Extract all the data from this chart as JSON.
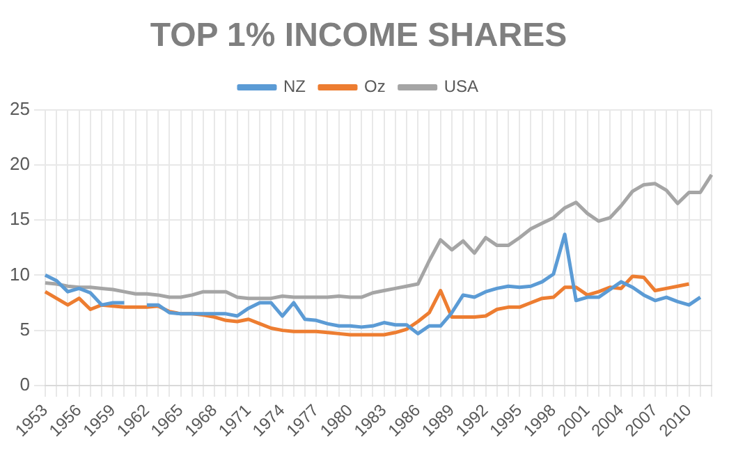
{
  "chart_data": {
    "type": "line",
    "title": "TOP 1% INCOME SHARES",
    "categories": [
      "1953",
      null,
      null,
      "1956",
      null,
      null,
      "1959",
      null,
      null,
      "1962",
      null,
      null,
      "1965",
      null,
      null,
      "1968",
      null,
      null,
      "1971",
      null,
      null,
      "1974",
      null,
      null,
      "1977",
      null,
      null,
      "1980",
      null,
      null,
      "1983",
      null,
      null,
      "1986",
      null,
      null,
      "1989",
      null,
      null,
      "1992",
      null,
      null,
      "1995",
      null,
      null,
      "1998",
      null,
      null,
      "2001",
      null,
      null,
      "2004",
      null,
      null,
      "2007",
      null,
      null,
      "2010",
      null,
      null
    ],
    "series": [
      {
        "name": "NZ",
        "color": "#5b9bd5",
        "values": [
          10.0,
          9.5,
          8.5,
          8.8,
          8.4,
          7.3,
          7.5,
          7.5,
          null,
          7.3,
          7.3,
          6.6,
          6.5,
          6.5,
          6.5,
          6.5,
          6.5,
          6.3,
          7.0,
          7.5,
          7.5,
          6.3,
          7.5,
          6.0,
          5.9,
          5.6,
          5.4,
          5.4,
          5.3,
          5.4,
          5.7,
          5.5,
          5.5,
          4.7,
          5.4,
          5.4,
          6.6,
          8.2,
          8.0,
          8.5,
          8.8,
          9.0,
          8.9,
          9.0,
          9.4,
          10.1,
          13.7,
          7.7,
          8.0,
          8.0,
          8.7,
          9.4,
          8.9,
          8.2,
          7.7,
          8.0,
          7.6,
          7.3,
          8.0,
          null
        ]
      },
      {
        "name": "Oz",
        "color": "#ed7d31",
        "values": [
          8.5,
          7.9,
          7.3,
          7.9,
          6.9,
          7.3,
          7.2,
          7.1,
          7.1,
          7.1,
          7.2,
          6.7,
          6.5,
          6.5,
          6.4,
          6.2,
          5.9,
          5.8,
          6.0,
          5.6,
          5.2,
          5.0,
          4.9,
          4.9,
          4.9,
          4.8,
          4.7,
          4.6,
          4.6,
          4.6,
          4.6,
          4.8,
          5.1,
          5.8,
          6.6,
          8.6,
          6.2,
          6.2,
          6.2,
          6.3,
          6.9,
          7.1,
          7.1,
          7.5,
          7.9,
          8.0,
          8.9,
          8.9,
          8.2,
          8.5,
          8.9,
          8.8,
          9.9,
          9.8,
          8.6,
          8.8,
          9.0,
          9.2,
          null,
          null
        ]
      },
      {
        "name": "USA",
        "color": "#a5a5a5",
        "values": [
          9.3,
          9.2,
          9.0,
          8.9,
          8.9,
          8.8,
          8.7,
          8.5,
          8.3,
          8.3,
          8.2,
          8.0,
          8.0,
          8.2,
          8.5,
          8.5,
          8.5,
          8.0,
          7.9,
          7.9,
          7.9,
          8.1,
          8.0,
          8.0,
          8.0,
          8.0,
          8.1,
          8.0,
          8.0,
          8.4,
          8.6,
          8.8,
          9.0,
          9.2,
          11.3,
          13.2,
          12.3,
          13.1,
          12.0,
          13.4,
          12.7,
          12.7,
          13.4,
          14.2,
          14.7,
          15.2,
          16.1,
          16.6,
          15.6,
          14.9,
          15.2,
          16.3,
          17.6,
          18.2,
          18.3,
          17.7,
          16.5,
          17.5,
          17.5,
          19.1
        ]
      }
    ],
    "ylim": [
      0,
      25
    ],
    "yticks": [
      0,
      5,
      10,
      15,
      20,
      25
    ],
    "grid": true,
    "legend": "top",
    "marker": "none",
    "line_style": "solid"
  }
}
